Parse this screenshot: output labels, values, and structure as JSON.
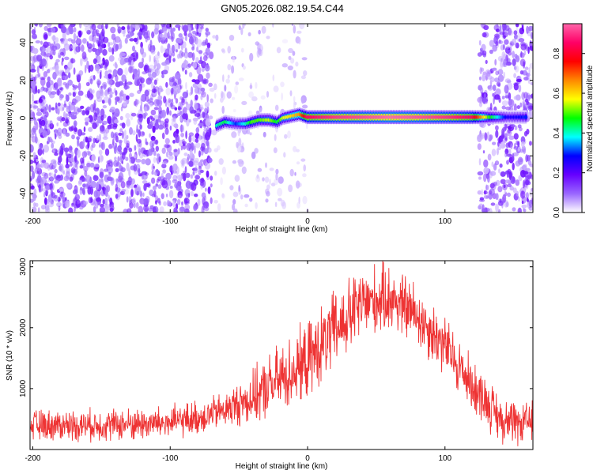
{
  "chart_data": [
    {
      "type": "heatmap",
      "title": "GN05.2026.082.19.54.C44",
      "xlabel": "Height of straight line (km)",
      "ylabel": "Frequency (Hz)",
      "xlim": [
        -202,
        164
      ],
      "ylim": [
        -50,
        50
      ],
      "x_ticks": [
        -200,
        -100,
        0,
        100
      ],
      "y_ticks": [
        -40,
        -20,
        0,
        20,
        40
      ],
      "colorbar": {
        "label": "Normalized spectral amplitude",
        "range": [
          0.0,
          0.95
        ],
        "ticks": [
          "0.0",
          "0.2",
          "0.4",
          "0.6",
          "0.8"
        ],
        "tick_values": [
          0.0,
          0.2,
          0.4,
          0.6,
          0.8
        ],
        "colors": [
          "#ffffff",
          "#9966ff",
          "#6600ff",
          "#0000ff",
          "#00ffff",
          "#00ff00",
          "#ffff00",
          "#ff8800",
          "#ff0000",
          "#ff0066",
          "#ff66aa"
        ]
      },
      "noise_regions": [
        {
          "x_range": [
            -202,
            -70
          ],
          "density": 0.55,
          "amplitude": 0.15
        },
        {
          "x_range": [
            -70,
            0
          ],
          "density": 0.12,
          "amplitude": 0.06
        },
        {
          "x_range": [
            125,
            164
          ],
          "density": 0.5,
          "amplitude": 0.15
        }
      ],
      "signal_track": [
        {
          "x": -66,
          "freq": -4,
          "amplitude": 0.4
        },
        {
          "x": -60,
          "freq": -2,
          "amplitude": 0.45
        },
        {
          "x": -52,
          "freq": -3,
          "amplitude": 0.3
        },
        {
          "x": -45,
          "freq": -3,
          "amplitude": 0.4
        },
        {
          "x": -40,
          "freq": -2,
          "amplitude": 0.5
        },
        {
          "x": -35,
          "freq": -1,
          "amplitude": 0.5
        },
        {
          "x": -28,
          "freq": -1,
          "amplitude": 0.55
        },
        {
          "x": -22,
          "freq": -2,
          "amplitude": 0.45
        },
        {
          "x": -18,
          "freq": 0,
          "amplitude": 0.55
        },
        {
          "x": -12,
          "freq": 1,
          "amplitude": 0.6
        },
        {
          "x": -6,
          "freq": 2,
          "amplitude": 0.65
        },
        {
          "x": 0,
          "freq": 0.5,
          "amplitude": 0.85
        },
        {
          "x": 20,
          "freq": 0.5,
          "amplitude": 0.9
        },
        {
          "x": 40,
          "freq": 0.5,
          "amplitude": 0.92
        },
        {
          "x": 60,
          "freq": 0.5,
          "amplitude": 0.95
        },
        {
          "x": 80,
          "freq": 0.5,
          "amplitude": 0.93
        },
        {
          "x": 100,
          "freq": 0.5,
          "amplitude": 0.9
        },
        {
          "x": 120,
          "freq": 0.5,
          "amplitude": 0.85
        },
        {
          "x": 132,
          "freq": 0.5,
          "amplitude": 0.5
        },
        {
          "x": 146,
          "freq": 0.5,
          "amplitude": 0.25
        },
        {
          "x": 160,
          "freq": 0.5,
          "amplitude": 0.3
        }
      ]
    },
    {
      "type": "line",
      "title": "",
      "xlabel": "Height of straight line (km)",
      "ylabel": "SNR (10 * v/v)",
      "xlim": [
        -202,
        164
      ],
      "ylim": [
        0,
        3100
      ],
      "x_ticks": [
        -200,
        -100,
        0,
        100
      ],
      "y_ticks": [
        1000,
        2000,
        3000
      ],
      "color": "#ee3333",
      "series": [
        {
          "x": [
            -202,
            -180,
            -160,
            -140,
            -120,
            -100,
            -80,
            -60,
            -40,
            -20,
            0,
            20,
            40,
            60,
            80,
            100,
            120,
            130,
            140,
            150,
            164
          ],
          "y": [
            400,
            400,
            400,
            410,
            420,
            440,
            520,
            650,
            850,
            1150,
            1450,
            1950,
            2400,
            2500,
            2200,
            1700,
            1050,
            800,
            500,
            400,
            450
          ]
        }
      ],
      "noise_spread": [
        {
          "x": -202,
          "spread": 300
        },
        {
          "x": -60,
          "spread": 350
        },
        {
          "x": -20,
          "spread": 700
        },
        {
          "x": 20,
          "spread": 800
        },
        {
          "x": 50,
          "spread": 700
        },
        {
          "x": 100,
          "spread": 600
        },
        {
          "x": 130,
          "spread": 500
        },
        {
          "x": 164,
          "spread": 400
        }
      ]
    }
  ]
}
